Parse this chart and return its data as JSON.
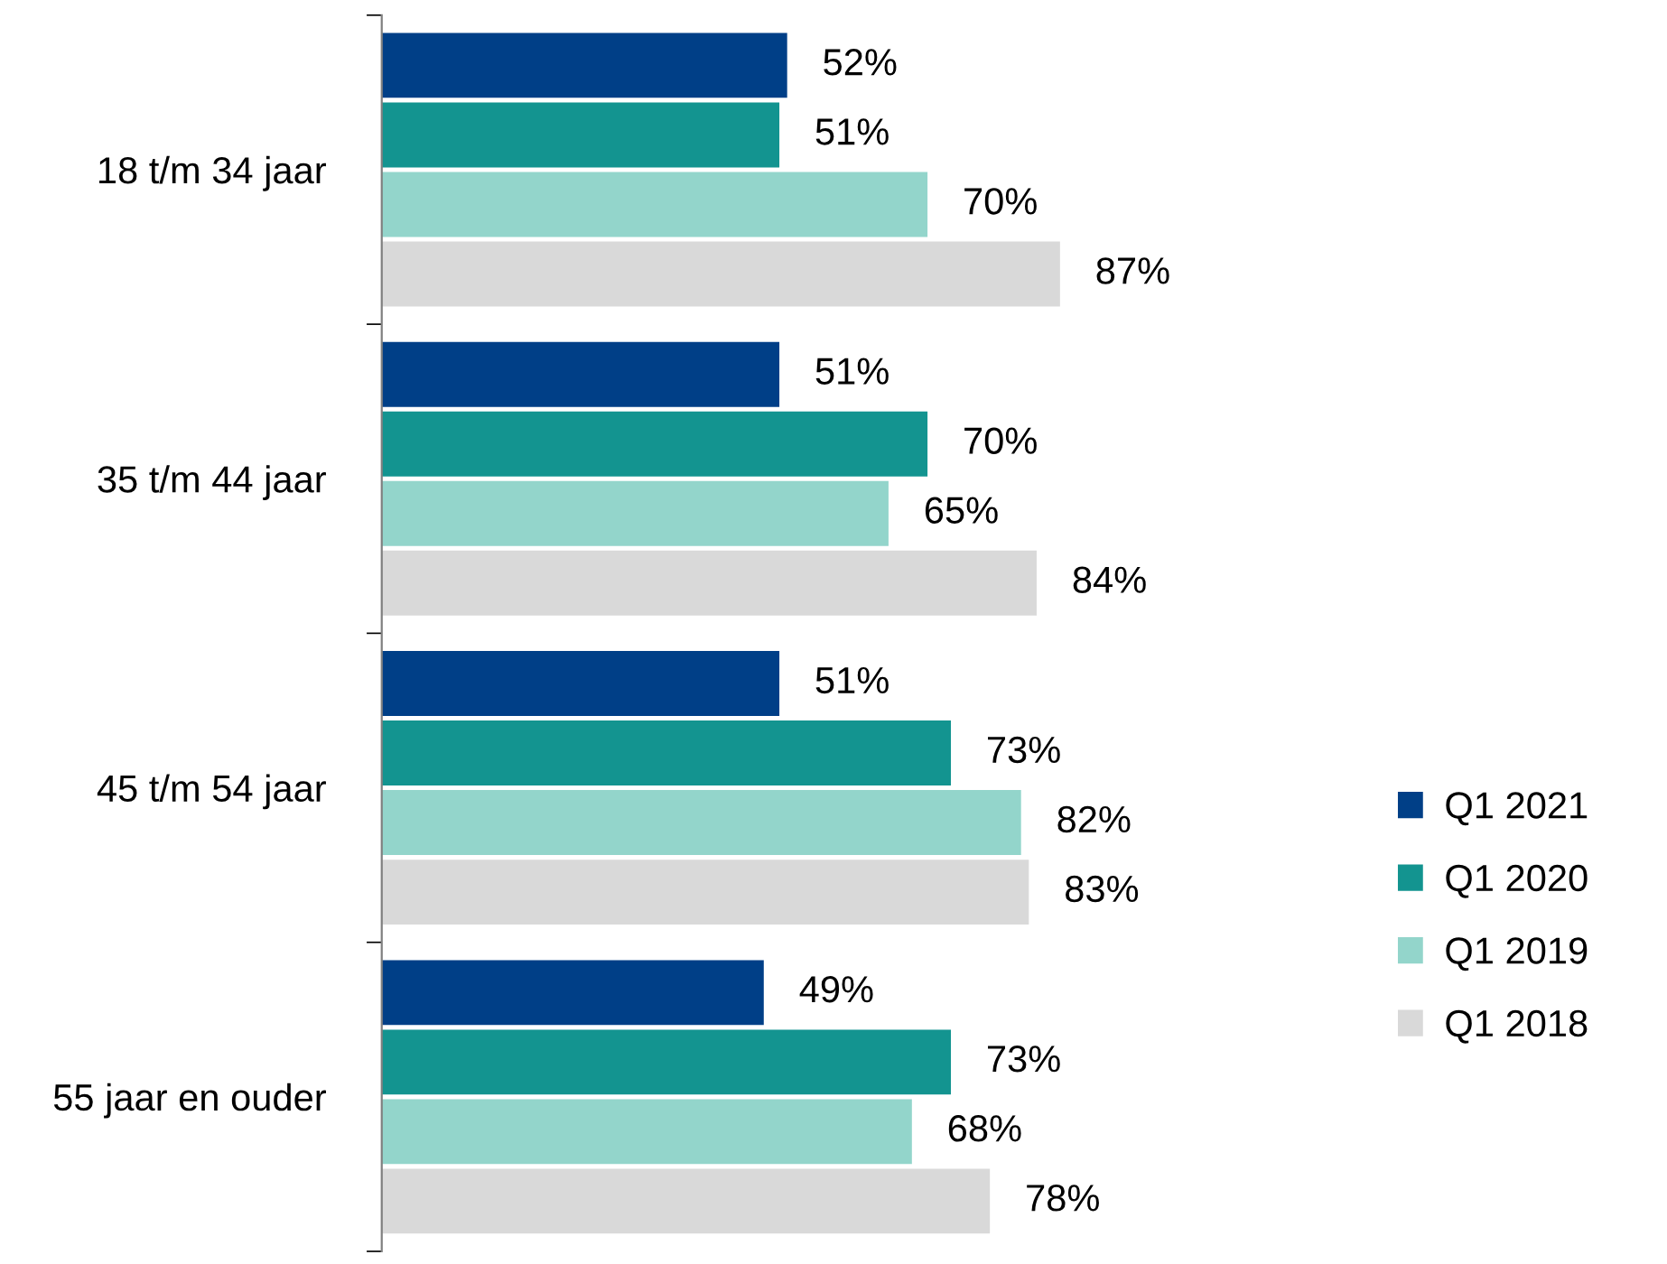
{
  "chart_data": {
    "type": "bar",
    "orientation": "horizontal",
    "categories": [
      "18 t/m 34 jaar",
      "35 t/m 44 jaar",
      "45 t/m 54 jaar",
      "55 jaar en ouder"
    ],
    "series": [
      {
        "name": "Q1 2021",
        "color": "#003f87",
        "values": [
          52,
          51,
          51,
          49
        ],
        "value_labels": [
          "52%",
          "51%",
          "51%",
          "49%"
        ]
      },
      {
        "name": "Q1 2020",
        "color": "#139490",
        "values": [
          51,
          70,
          73,
          73
        ],
        "value_labels": [
          "51%",
          "70%",
          "73%",
          "73%"
        ]
      },
      {
        "name": "Q1 2019",
        "color": "#93d5cb",
        "values": [
          70,
          65,
          82,
          68
        ],
        "value_labels": [
          "70%",
          "65%",
          "82%",
          "68%"
        ]
      },
      {
        "name": "Q1 2018",
        "color": "#d9d9d9",
        "values": [
          87,
          84,
          83,
          78
        ],
        "value_labels": [
          "87%",
          "84%",
          "83%",
          "78%"
        ]
      }
    ],
    "legend": "right",
    "grid": false,
    "tick_labels": "y"
  }
}
